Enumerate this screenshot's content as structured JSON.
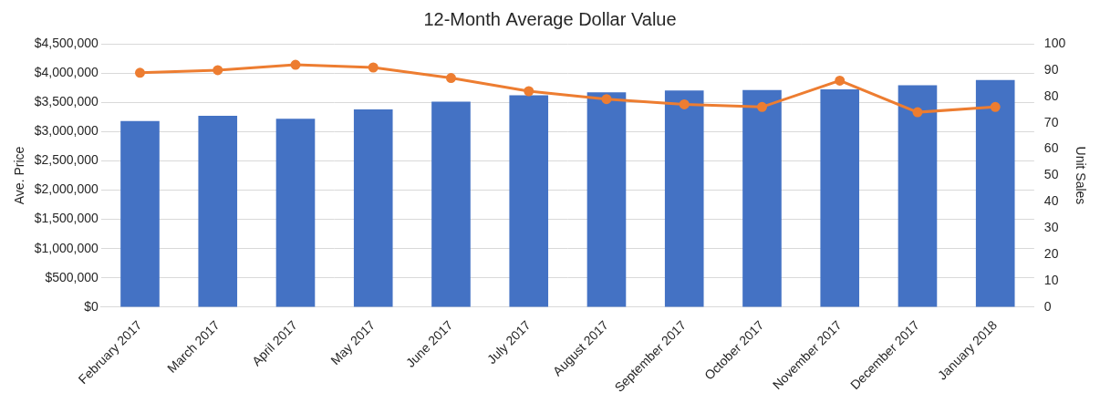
{
  "chart_data": {
    "type": "bar",
    "title": "12-Month Average Dollar Value",
    "ylabel": "Ave. Price",
    "y2label": "Unit Sales",
    "categories": [
      "February 2017",
      "March 2017",
      "April 2017",
      "May 2017",
      "June 2017",
      "July 2017",
      "August 2017",
      "September 2017",
      "October 2017",
      "November 2017",
      "December 2017",
      "January 2018"
    ],
    "series": [
      {
        "name": "Ave. Price",
        "type": "bar",
        "color": "#4472c4",
        "axis": "y",
        "values": [
          3180000,
          3270000,
          3220000,
          3380000,
          3510000,
          3620000,
          3670000,
          3700000,
          3710000,
          3720000,
          3790000,
          3880000
        ]
      },
      {
        "name": "Unit Sales",
        "type": "line",
        "color": "#ed7d31",
        "axis": "y2",
        "marker": "circle",
        "line_style": "solid",
        "values": [
          89,
          90,
          92,
          91,
          87,
          82,
          79,
          77,
          76,
          86,
          74,
          76
        ]
      }
    ],
    "ylim": [
      0,
      4500000
    ],
    "yticks": [
      {
        "value": 0,
        "label": "$0"
      },
      {
        "value": 500000,
        "label": "$500,000"
      },
      {
        "value": 1000000,
        "label": "$1,000,000"
      },
      {
        "value": 1500000,
        "label": "$1,500,000"
      },
      {
        "value": 2000000,
        "label": "$2,000,000"
      },
      {
        "value": 2500000,
        "label": "$2,500,000"
      },
      {
        "value": 3000000,
        "label": "$3,000,000"
      },
      {
        "value": 3500000,
        "label": "$3,500,000"
      },
      {
        "value": 4000000,
        "label": "$4,000,000"
      },
      {
        "value": 4500000,
        "label": "$4,500,000"
      }
    ],
    "y2lim": [
      0,
      100
    ],
    "y2ticks": [
      0,
      10,
      20,
      30,
      40,
      50,
      60,
      70,
      80,
      90,
      100
    ],
    "grid": true
  }
}
